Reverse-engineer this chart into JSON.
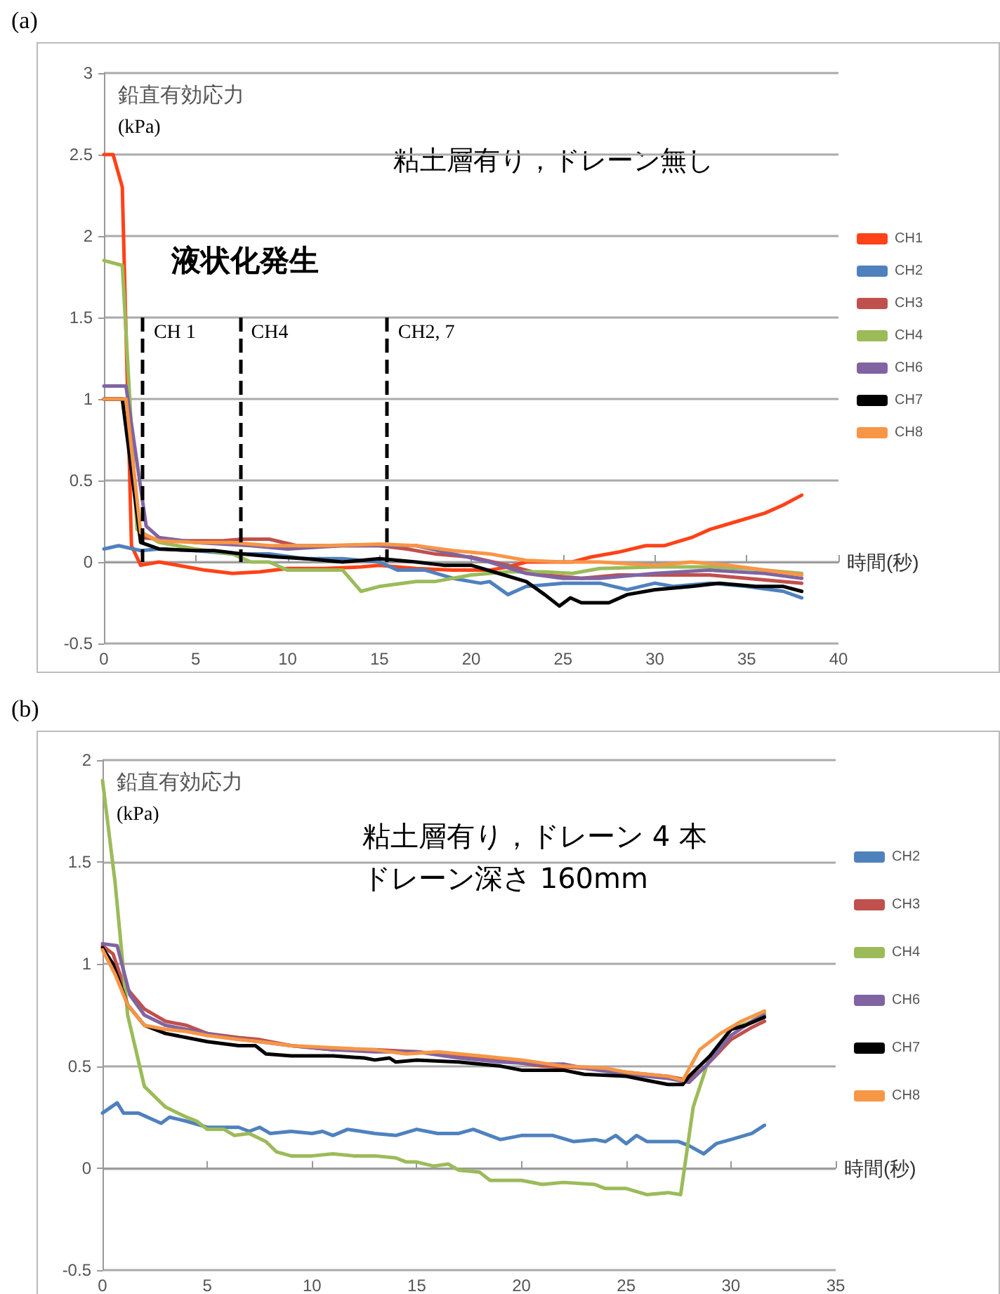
{
  "chart_data": [
    {
      "type": "line",
      "title": "(a)",
      "ylabel": "鉛直有効応力\n(kPa)",
      "xlabel": "時間(秒)",
      "xlim": [
        0,
        40
      ],
      "xticks": [
        0,
        5,
        10,
        15,
        20,
        25,
        30,
        35,
        40
      ],
      "ylim": [
        -0.5,
        3
      ],
      "yticks": [
        -0.5,
        0,
        0.5,
        1,
        1.5,
        2,
        2.5,
        3
      ],
      "grid": "y",
      "legend": "right",
      "marker": "none",
      "line_style": "solid",
      "annotations": [
        "粘土層有り，ドレーン無し",
        "液状化発生",
        {
          "text": "CH 1",
          "x": 2.1,
          "y": 0
        },
        {
          "text": "CH4",
          "x": 7.4,
          "y": 0
        },
        {
          "text": "CH2, 7",
          "x": 15.4,
          "y": 0
        }
      ],
      "series": [
        {
          "name": "CH1",
          "color": "#ff4218",
          "x": [
            0,
            0.5,
            1,
            1.5,
            2,
            3,
            4,
            5.5,
            7,
            8.5,
            10,
            12,
            14,
            15,
            17,
            19,
            21,
            22,
            23,
            24.5,
            25.5,
            26.5,
            28,
            29.5,
            30.5,
            32,
            33,
            34.5,
            36,
            37,
            38
          ],
          "values": [
            2.5,
            2.5,
            2.3,
            0.1,
            -0.02,
            0,
            -0.02,
            -0.05,
            -0.07,
            -0.06,
            -0.04,
            -0.04,
            -0.03,
            -0.02,
            -0.04,
            -0.05,
            -0.05,
            -0.03,
            0,
            0,
            0,
            0.03,
            0.06,
            0.1,
            0.1,
            0.15,
            0.2,
            0.25,
            0.3,
            0.35,
            0.41
          ]
        },
        {
          "name": "CH2",
          "color": "#4f81bd",
          "x": [
            0,
            0.8,
            2,
            3,
            5,
            7,
            9,
            11,
            13,
            15,
            16,
            17.5,
            19,
            20.5,
            21,
            22,
            23,
            25,
            27,
            28.5,
            30,
            31,
            33,
            35,
            37,
            38
          ],
          "values": [
            0.08,
            0.1,
            0.07,
            0.08,
            0.07,
            0.05,
            0.05,
            0.02,
            0.02,
            0,
            -0.05,
            -0.05,
            -0.1,
            -0.13,
            -0.12,
            -0.2,
            -0.15,
            -0.13,
            -0.13,
            -0.17,
            -0.13,
            -0.15,
            -0.13,
            -0.15,
            -0.18,
            -0.22
          ]
        },
        {
          "name": "CH3",
          "color": "#c0504d",
          "x": [
            0,
            1.2,
            2,
            4,
            6.5,
            7.5,
            9,
            10.5,
            12,
            15,
            16.5,
            18,
            20,
            22,
            24,
            26,
            28,
            30,
            33,
            35,
            38
          ],
          "values": [
            1,
            1,
            0.15,
            0.13,
            0.13,
            0.14,
            0.14,
            0.1,
            0.1,
            0.1,
            0.08,
            0.05,
            0.03,
            -0.02,
            -0.08,
            -0.1,
            -0.08,
            -0.08,
            -0.08,
            -0.1,
            -0.13
          ]
        },
        {
          "name": "CH4",
          "color": "#9bbb59",
          "x": [
            0,
            1,
            1.8,
            3,
            5,
            7,
            8,
            9,
            10,
            12,
            13,
            14,
            15,
            17,
            18,
            20,
            22,
            24,
            25.5,
            27,
            30,
            33,
            35,
            38
          ],
          "values": [
            1.85,
            1.82,
            0.2,
            0.12,
            0.08,
            0.05,
            0,
            0,
            -0.05,
            -0.05,
            -0.05,
            -0.18,
            -0.15,
            -0.12,
            -0.12,
            -0.08,
            -0.06,
            -0.06,
            -0.07,
            -0.04,
            -0.03,
            -0.03,
            -0.04,
            -0.07
          ]
        },
        {
          "name": "CH6",
          "color": "#8064a2",
          "x": [
            0,
            1.2,
            2.3,
            3,
            5,
            8,
            10,
            13,
            15,
            17,
            19,
            21,
            23,
            25,
            27,
            30,
            33,
            36,
            38
          ],
          "values": [
            1.08,
            1.08,
            0.22,
            0.15,
            0.12,
            0.1,
            0.08,
            0.1,
            0.1,
            0.1,
            0.05,
            0,
            -0.07,
            -0.1,
            -0.1,
            -0.07,
            -0.05,
            -0.07,
            -0.1
          ]
        },
        {
          "name": "CH7",
          "color": "#000000",
          "x": [
            0,
            1,
            2,
            3,
            5,
            6,
            7.5,
            9.5,
            11,
            13,
            15,
            17,
            18.5,
            20,
            21.5,
            23,
            24,
            24.8,
            25.4,
            26,
            27.5,
            28.5,
            30,
            32,
            33.5,
            35.5,
            37,
            38
          ],
          "values": [
            1,
            1,
            0.12,
            0.08,
            0.07,
            0.07,
            0.05,
            0.03,
            0.02,
            0,
            0.02,
            0,
            -0.02,
            -0.02,
            -0.07,
            -0.12,
            -0.2,
            -0.27,
            -0.22,
            -0.25,
            -0.25,
            -0.2,
            -0.17,
            -0.15,
            -0.13,
            -0.15,
            -0.15,
            -0.18
          ]
        },
        {
          "name": "CH8",
          "color": "#f79646",
          "x": [
            0,
            1.2,
            2,
            3,
            5,
            7,
            9,
            12,
            15,
            17,
            19,
            21,
            23,
            25,
            27,
            30,
            32,
            34,
            36,
            38
          ],
          "values": [
            1,
            1,
            0.18,
            0.13,
            0.12,
            0.12,
            0.1,
            0.1,
            0.11,
            0.1,
            0.07,
            0.05,
            0.01,
            0,
            0,
            -0.02,
            0,
            -0.02,
            -0.05,
            -0.08
          ]
        }
      ]
    },
    {
      "type": "line",
      "title": "(b)",
      "ylabel": "鉛直有効応力\n(kPa)",
      "xlabel": "時間(秒)",
      "xlim": [
        0,
        35
      ],
      "xticks": [
        0,
        5,
        10,
        15,
        20,
        25,
        30,
        35
      ],
      "ylim": [
        -0.5,
        2
      ],
      "yticks": [
        -0.5,
        0,
        0.5,
        1,
        1.5,
        2
      ],
      "grid": "y",
      "legend": "right",
      "marker": "none",
      "line_style": "solid",
      "annotations": [
        "粘土層有り，ドレーン 4 本",
        "ドレーン深さ 160mm"
      ],
      "series": [
        {
          "name": "CH2",
          "color": "#4f81bd",
          "x": [
            0,
            0.7,
            1,
            1.7,
            2.8,
            3.2,
            4,
            5,
            6.5,
            7,
            7.5,
            8,
            9,
            10,
            10.5,
            11,
            11.7,
            13,
            14,
            15,
            16,
            17,
            17.7,
            19,
            20,
            21.5,
            22.5,
            23.5,
            24,
            24.5,
            25,
            25.5,
            26,
            27.5,
            28,
            28.7,
            29.3,
            30,
            31,
            31.6
          ],
          "values": [
            0.27,
            0.32,
            0.27,
            0.27,
            0.22,
            0.25,
            0.23,
            0.2,
            0.2,
            0.18,
            0.2,
            0.17,
            0.18,
            0.17,
            0.18,
            0.16,
            0.19,
            0.17,
            0.16,
            0.19,
            0.17,
            0.17,
            0.19,
            0.14,
            0.16,
            0.16,
            0.13,
            0.14,
            0.13,
            0.16,
            0.12,
            0.16,
            0.13,
            0.13,
            0.11,
            0.07,
            0.12,
            0.14,
            0.17,
            0.21
          ]
        },
        {
          "name": "CH3",
          "color": "#c0504d",
          "x": [
            0,
            0.5,
            1,
            2,
            3,
            4,
            5,
            6.5,
            7.5,
            9,
            11,
            13,
            15,
            17,
            19,
            21,
            23,
            25,
            27,
            28,
            28.8,
            30,
            31,
            31.6
          ],
          "values": [
            1.09,
            1.05,
            0.9,
            0.78,
            0.72,
            0.7,
            0.66,
            0.64,
            0.63,
            0.6,
            0.58,
            0.58,
            0.57,
            0.55,
            0.53,
            0.5,
            0.49,
            0.47,
            0.45,
            0.43,
            0.5,
            0.63,
            0.69,
            0.72
          ]
        },
        {
          "name": "CH4",
          "color": "#9bbb59",
          "x": [
            0,
            0.6,
            1.2,
            2,
            3,
            4,
            4.5,
            5,
            5.8,
            6.3,
            7,
            7.8,
            8.3,
            9,
            10,
            11,
            12,
            13,
            14,
            14.5,
            15,
            15.8,
            16.5,
            17,
            18,
            18.5,
            20,
            21,
            22,
            23.5,
            24,
            25,
            26,
            27,
            27.6,
            28.2,
            29,
            30,
            31,
            31.6
          ],
          "values": [
            1.9,
            1.4,
            0.75,
            0.4,
            0.3,
            0.25,
            0.23,
            0.19,
            0.19,
            0.16,
            0.17,
            0.13,
            0.08,
            0.06,
            0.06,
            0.07,
            0.06,
            0.06,
            0.05,
            0.03,
            0.03,
            0.01,
            0.02,
            -0.01,
            -0.02,
            -0.06,
            -0.06,
            -0.08,
            -0.07,
            -0.08,
            -0.1,
            -0.1,
            -0.13,
            -0.12,
            -0.13,
            0.3,
            0.55,
            0.68,
            0.72,
            0.76
          ]
        },
        {
          "name": "CH6",
          "color": "#8064a2",
          "x": [
            0,
            0.7,
            1.3,
            2,
            3,
            4.5,
            6,
            7.5,
            9,
            11,
            13,
            15,
            17,
            19,
            21,
            22,
            23,
            25,
            27,
            28,
            28.8,
            30,
            31,
            31.6
          ],
          "values": [
            1.1,
            1.09,
            0.85,
            0.75,
            0.7,
            0.67,
            0.64,
            0.62,
            0.6,
            0.58,
            0.57,
            0.57,
            0.54,
            0.52,
            0.51,
            0.51,
            0.49,
            0.46,
            0.44,
            0.42,
            0.5,
            0.65,
            0.72,
            0.75
          ]
        },
        {
          "name": "CH7",
          "color": "#000000",
          "x": [
            0,
            0.5,
            1.2,
            2,
            3,
            3.5,
            5,
            6.5,
            7.3,
            7.8,
            9,
            11,
            12.5,
            13,
            13.7,
            14,
            15,
            17,
            19,
            20,
            22,
            23,
            25,
            26,
            27,
            27.7,
            28,
            29,
            30,
            30.7,
            31.6
          ],
          "values": [
            1.08,
            1,
            0.8,
            0.7,
            0.66,
            0.65,
            0.62,
            0.6,
            0.6,
            0.56,
            0.55,
            0.55,
            0.54,
            0.53,
            0.54,
            0.52,
            0.53,
            0.52,
            0.5,
            0.48,
            0.48,
            0.46,
            0.45,
            0.43,
            0.41,
            0.41,
            0.45,
            0.55,
            0.68,
            0.7,
            0.74
          ]
        },
        {
          "name": "CH8",
          "color": "#f79646",
          "x": [
            0,
            0.6,
            1.2,
            2,
            3,
            4,
            5,
            6.5,
            7.5,
            9,
            11,
            13,
            14.5,
            16,
            18,
            20,
            22,
            24,
            25,
            27,
            27.7,
            28.5,
            29.5,
            30.5,
            31.6
          ],
          "values": [
            1.07,
            0.95,
            0.8,
            0.7,
            0.68,
            0.67,
            0.65,
            0.63,
            0.62,
            0.6,
            0.59,
            0.58,
            0.56,
            0.57,
            0.55,
            0.53,
            0.5,
            0.49,
            0.47,
            0.45,
            0.43,
            0.58,
            0.66,
            0.72,
            0.77
          ]
        }
      ]
    }
  ]
}
